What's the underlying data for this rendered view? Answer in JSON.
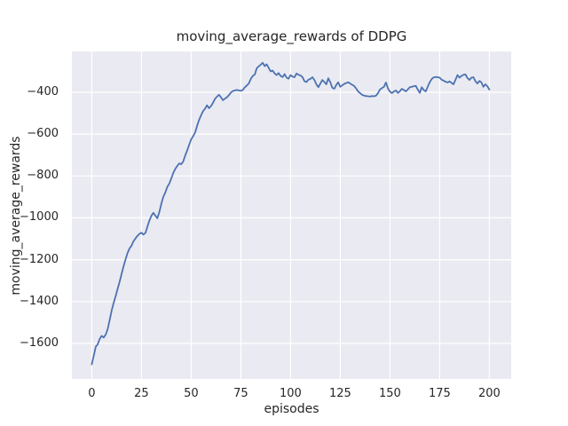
{
  "chart_data": {
    "type": "line",
    "title": "moving_average_rewards of DDPG",
    "xlabel": "episodes",
    "ylabel": "moving_average_rewards",
    "x_ticks": [
      0,
      25,
      50,
      75,
      100,
      125,
      150,
      175,
      200
    ],
    "y_ticks": [
      -400,
      -600,
      -800,
      -1000,
      -1200,
      -1400,
      -1600
    ],
    "xlim": [
      -10,
      211
    ],
    "ylim": [
      -1770,
      -205
    ],
    "grid": true,
    "legend": "none",
    "style": "seaborn-darkgrid",
    "plot_bg": "#eaeaf2",
    "grid_color": "#ffffff",
    "line_color": "#4c72b0",
    "text_color": "#262626",
    "series": [
      {
        "name": "moving_average_rewards",
        "x_start": 0,
        "x_step": 1,
        "values": [
          -1700,
          -1660,
          -1616,
          -1604,
          -1578,
          -1564,
          -1572,
          -1558,
          -1532,
          -1488,
          -1443,
          -1408,
          -1374,
          -1340,
          -1305,
          -1268,
          -1232,
          -1198,
          -1168,
          -1146,
          -1133,
          -1112,
          -1098,
          -1086,
          -1076,
          -1071,
          -1080,
          -1072,
          -1042,
          -1012,
          -990,
          -976,
          -990,
          -1002,
          -972,
          -932,
          -900,
          -878,
          -852,
          -836,
          -812,
          -786,
          -766,
          -752,
          -740,
          -744,
          -731,
          -702,
          -678,
          -652,
          -625,
          -610,
          -592,
          -560,
          -532,
          -510,
          -490,
          -478,
          -462,
          -476,
          -466,
          -450,
          -431,
          -421,
          -412,
          -424,
          -438,
          -430,
          -424,
          -414,
          -401,
          -394,
          -391,
          -389,
          -391,
          -393,
          -389,
          -376,
          -368,
          -358,
          -336,
          -322,
          -315,
          -285,
          -276,
          -268,
          -259,
          -275,
          -266,
          -283,
          -300,
          -296,
          -310,
          -318,
          -308,
          -322,
          -327,
          -313,
          -330,
          -335,
          -318,
          -325,
          -328,
          -310,
          -316,
          -320,
          -327,
          -347,
          -351,
          -340,
          -336,
          -328,
          -341,
          -362,
          -376,
          -358,
          -341,
          -351,
          -362,
          -333,
          -352,
          -378,
          -383,
          -365,
          -352,
          -374,
          -367,
          -360,
          -356,
          -352,
          -358,
          -364,
          -370,
          -382,
          -396,
          -404,
          -412,
          -416,
          -418,
          -419,
          -420,
          -418,
          -419,
          -416,
          -404,
          -386,
          -380,
          -374,
          -353,
          -381,
          -397,
          -404,
          -396,
          -391,
          -403,
          -395,
          -383,
          -389,
          -396,
          -386,
          -376,
          -374,
          -371,
          -369,
          -387,
          -403,
          -376,
          -389,
          -396,
          -374,
          -352,
          -337,
          -329,
          -327,
          -328,
          -330,
          -340,
          -344,
          -350,
          -353,
          -348,
          -355,
          -362,
          -340,
          -318,
          -330,
          -322,
          -316,
          -315,
          -332,
          -341,
          -330,
          -328,
          -347,
          -358,
          -346,
          -352,
          -374,
          -362,
          -371,
          -387
        ]
      }
    ]
  }
}
